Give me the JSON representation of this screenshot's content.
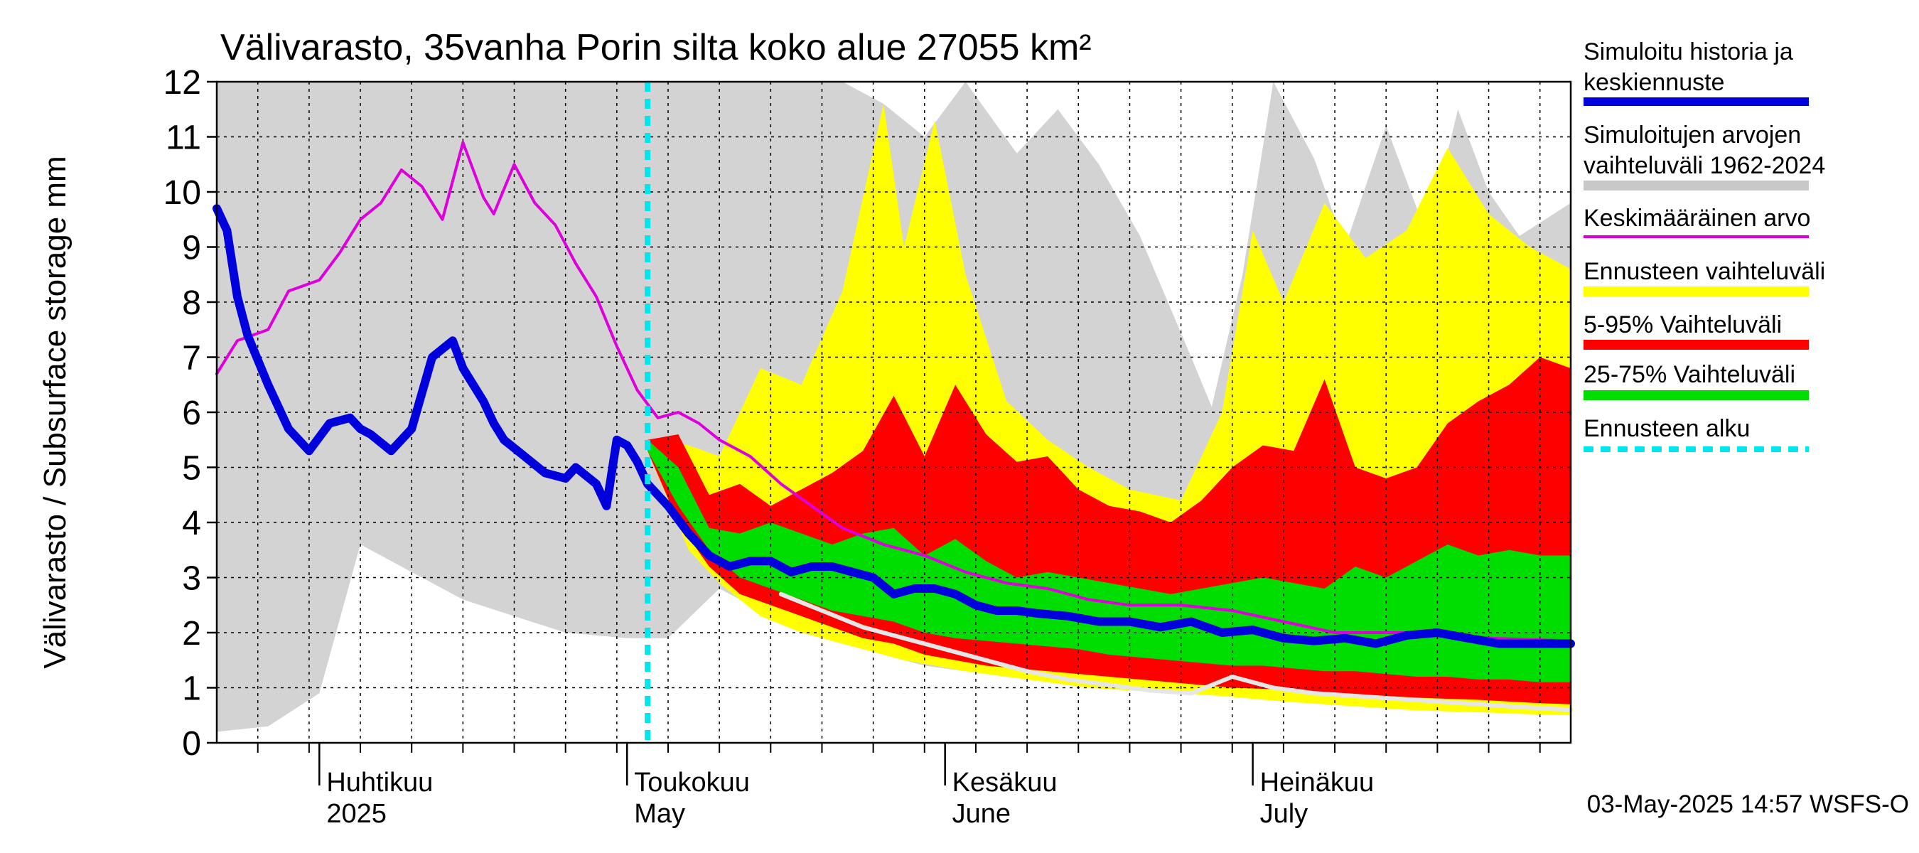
{
  "chart_data": {
    "type": "area",
    "title": "Välivarasto, 35vanha Porin silta koko alue 27055 km²",
    "ylabel": "Välivarasto / Subsurface storage  mm",
    "ylim": [
      0,
      12
    ],
    "y_ticks": [
      "0",
      "1",
      "2",
      "3",
      "4",
      "5",
      "6",
      "7",
      "8",
      "9",
      "10",
      "11",
      "12"
    ],
    "xlim": [
      "2025-03-22",
      "2025-08-01"
    ],
    "month_ticks": [
      {
        "date": "2025-04-01",
        "line1": "Huhtikuu",
        "line2": "2025"
      },
      {
        "date": "2025-05-01",
        "line1": "Toukokuu",
        "line2": "May"
      },
      {
        "date": "2025-06-01",
        "line1": "Kesäkuu",
        "line2": "June"
      },
      {
        "date": "2025-07-01",
        "line1": "Heinäkuu",
        "line2": "July"
      }
    ],
    "forecast_start": "2025-05-03",
    "timestamp": "03-May-2025 14:57 WSFS-O",
    "legend": [
      {
        "label": "Simuloitu historia ja keskiennuste",
        "color": "#0000dd",
        "style": "thick-line"
      },
      {
        "label": "Simuloitujen arvojen vaihteluväli 1962-2024",
        "color": "#c8c8c8",
        "style": "band"
      },
      {
        "label": "Keskimääräinen arvo",
        "color": "#dd00dd",
        "style": "line"
      },
      {
        "label": "Ennusteen vaihteluväli",
        "color": "#ffff00",
        "style": "band"
      },
      {
        "label": "5-95% Vaihteluväli",
        "color": "#ff0000",
        "style": "band"
      },
      {
        "label": "25-75% Vaihteluväli",
        "color": "#00dd00",
        "style": "band"
      },
      {
        "label": "Ennusteen alku",
        "color": "#00e5ee",
        "style": "dashed"
      }
    ],
    "colors": {
      "hist_band": "#d3d3d3",
      "forecast_band": "#ffff00",
      "p5_95": "#ff0000",
      "p25_75": "#00dd00",
      "median": "#0000dd",
      "mean": "#dd00dd",
      "white_line": "#e6e6e6",
      "forecast_start": "#00e5ee"
    },
    "series": {
      "hist_range": {
        "x": [
          "2025-03-22",
          "2025-03-27",
          "2025-04-01",
          "2025-04-05",
          "2025-04-10",
          "2025-04-15",
          "2025-04-20",
          "2025-04-25",
          "2025-05-01",
          "2025-05-05",
          "2025-05-10",
          "2025-05-14",
          "2025-05-18",
          "2025-05-22",
          "2025-05-26",
          "2025-05-30",
          "2025-06-03",
          "2025-06-08",
          "2025-06-12",
          "2025-06-16",
          "2025-06-20",
          "2025-06-25",
          "2025-06-27",
          "2025-06-30",
          "2025-07-03",
          "2025-07-07",
          "2025-07-10",
          "2025-07-14",
          "2025-07-18",
          "2025-07-21",
          "2025-07-24",
          "2025-07-27",
          "2025-08-01"
        ],
        "lo": [
          0.2,
          0.3,
          0.9,
          3.6,
          3.1,
          2.6,
          2.3,
          2.0,
          1.9,
          1.9,
          2.8,
          2.4,
          2.0,
          1.8,
          1.6,
          1.4,
          1.3,
          1.2,
          1.15,
          1.1,
          1.05,
          1.0,
          1.0,
          0.95,
          0.9,
          0.88,
          0.85,
          0.83,
          0.8,
          0.78,
          0.76,
          0.74,
          0.72
        ],
        "hi": [
          12,
          12,
          12,
          12,
          12,
          12,
          12,
          12,
          12,
          12,
          12,
          12,
          12,
          12,
          11.6,
          11.0,
          12,
          10.7,
          11.5,
          10.5,
          9.2,
          7.0,
          6.1,
          8.5,
          12,
          10.6,
          9.0,
          11.2,
          9.2,
          11.5,
          10.0,
          9.2,
          9.8
        ]
      },
      "forecast_range": {
        "x": [
          "2025-05-03",
          "2025-05-07",
          "2025-05-10",
          "2025-05-14",
          "2025-05-18",
          "2025-05-22",
          "2025-05-26",
          "2025-05-28",
          "2025-05-31",
          "2025-06-03",
          "2025-06-07",
          "2025-06-11",
          "2025-06-15",
          "2025-06-19",
          "2025-06-24",
          "2025-06-28",
          "2025-07-01",
          "2025-07-04",
          "2025-07-08",
          "2025-07-12",
          "2025-07-16",
          "2025-07-20",
          "2025-07-24",
          "2025-07-28",
          "2025-08-01"
        ],
        "lo": [
          5.3,
          3.5,
          2.9,
          2.3,
          2.0,
          1.8,
          1.6,
          1.5,
          1.4,
          1.3,
          1.2,
          1.1,
          1.0,
          0.95,
          0.9,
          0.85,
          0.8,
          0.75,
          0.7,
          0.65,
          0.6,
          0.57,
          0.55,
          0.52,
          0.5
        ],
        "hi": [
          5.5,
          5.4,
          5.2,
          6.8,
          6.5,
          8.2,
          11.6,
          9.0,
          11.3,
          8.5,
          6.2,
          5.5,
          5.0,
          4.6,
          4.4,
          6.0,
          9.3,
          8.0,
          9.8,
          8.8,
          9.3,
          10.8,
          9.6,
          9.0,
          8.6
        ]
      },
      "p5_95": {
        "x": [
          "2025-05-03",
          "2025-05-06",
          "2025-05-09",
          "2025-05-12",
          "2025-05-15",
          "2025-05-18",
          "2025-05-21",
          "2025-05-24",
          "2025-05-27",
          "2025-05-30",
          "2025-06-02",
          "2025-06-05",
          "2025-06-08",
          "2025-06-11",
          "2025-06-14",
          "2025-06-17",
          "2025-06-20",
          "2025-06-23",
          "2025-06-26",
          "2025-06-29",
          "2025-07-02",
          "2025-07-05",
          "2025-07-08",
          "2025-07-11",
          "2025-07-14",
          "2025-07-17",
          "2025-07-20",
          "2025-07-23",
          "2025-07-26",
          "2025-07-29",
          "2025-08-01"
        ],
        "lo": [
          5.3,
          4.0,
          3.2,
          2.7,
          2.5,
          2.3,
          2.1,
          1.9,
          1.8,
          1.6,
          1.5,
          1.4,
          1.35,
          1.3,
          1.25,
          1.2,
          1.15,
          1.1,
          1.05,
          1.0,
          0.98,
          0.95,
          0.9,
          0.88,
          0.85,
          0.82,
          0.8,
          0.78,
          0.75,
          0.72,
          0.7
        ],
        "hi": [
          5.5,
          5.6,
          4.5,
          4.7,
          4.3,
          4.6,
          4.9,
          5.3,
          6.3,
          5.2,
          6.5,
          5.6,
          5.1,
          5.2,
          4.6,
          4.3,
          4.2,
          4.0,
          4.4,
          5.0,
          5.4,
          5.3,
          6.6,
          5.0,
          4.8,
          5.0,
          5.8,
          6.2,
          6.5,
          7.0,
          6.8
        ]
      },
      "p25_75": {
        "x": [
          "2025-05-03",
          "2025-05-06",
          "2025-05-09",
          "2025-05-12",
          "2025-05-15",
          "2025-05-18",
          "2025-05-21",
          "2025-05-24",
          "2025-05-27",
          "2025-05-30",
          "2025-06-02",
          "2025-06-05",
          "2025-06-08",
          "2025-06-11",
          "2025-06-14",
          "2025-06-17",
          "2025-06-20",
          "2025-06-23",
          "2025-06-26",
          "2025-06-29",
          "2025-07-02",
          "2025-07-05",
          "2025-07-08",
          "2025-07-11",
          "2025-07-14",
          "2025-07-17",
          "2025-07-20",
          "2025-07-23",
          "2025-07-26",
          "2025-07-29",
          "2025-08-01"
        ],
        "lo": [
          5.3,
          4.3,
          3.5,
          3.0,
          2.8,
          2.6,
          2.4,
          2.3,
          2.2,
          2.0,
          1.9,
          1.85,
          1.8,
          1.75,
          1.7,
          1.6,
          1.55,
          1.5,
          1.45,
          1.4,
          1.4,
          1.35,
          1.3,
          1.3,
          1.25,
          1.2,
          1.2,
          1.15,
          1.15,
          1.1,
          1.1
        ],
        "hi": [
          5.5,
          5.0,
          3.9,
          3.8,
          4.0,
          3.8,
          3.6,
          3.8,
          3.9,
          3.4,
          3.7,
          3.3,
          3.0,
          3.1,
          3.0,
          2.9,
          2.8,
          2.7,
          2.8,
          2.9,
          3.0,
          2.9,
          2.8,
          3.2,
          3.0,
          3.3,
          3.6,
          3.4,
          3.5,
          3.4,
          3.4
        ]
      },
      "median": {
        "x": [
          "2025-03-22",
          "2025-03-23",
          "2025-03-24",
          "2025-03-25",
          "2025-03-27",
          "2025-03-29",
          "2025-03-31",
          "2025-04-02",
          "2025-04-04",
          "2025-04-05",
          "2025-04-06",
          "2025-04-08",
          "2025-04-10",
          "2025-04-12",
          "2025-04-14",
          "2025-04-15",
          "2025-04-17",
          "2025-04-18",
          "2025-04-19",
          "2025-04-21",
          "2025-04-23",
          "2025-04-25",
          "2025-04-26",
          "2025-04-28",
          "2025-04-29",
          "2025-04-30",
          "2025-05-01",
          "2025-05-02",
          "2025-05-03",
          "2025-05-05",
          "2025-05-07",
          "2025-05-09",
          "2025-05-11",
          "2025-05-13",
          "2025-05-15",
          "2025-05-17",
          "2025-05-19",
          "2025-05-21",
          "2025-05-23",
          "2025-05-25",
          "2025-05-27",
          "2025-05-29",
          "2025-05-31",
          "2025-06-02",
          "2025-06-04",
          "2025-06-06",
          "2025-06-08",
          "2025-06-10",
          "2025-06-13",
          "2025-06-16",
          "2025-06-19",
          "2025-06-22",
          "2025-06-25",
          "2025-06-28",
          "2025-07-01",
          "2025-07-04",
          "2025-07-07",
          "2025-07-10",
          "2025-07-13",
          "2025-07-16",
          "2025-07-19",
          "2025-07-22",
          "2025-07-25",
          "2025-07-28",
          "2025-08-01"
        ],
        "y": [
          9.7,
          9.3,
          8.1,
          7.4,
          6.5,
          5.7,
          5.3,
          5.8,
          5.9,
          5.7,
          5.6,
          5.3,
          5.7,
          7.0,
          7.3,
          6.8,
          6.2,
          5.8,
          5.5,
          5.2,
          4.9,
          4.8,
          5.0,
          4.7,
          4.3,
          5.5,
          5.4,
          5.1,
          4.7,
          4.3,
          3.8,
          3.4,
          3.2,
          3.3,
          3.3,
          3.1,
          3.2,
          3.2,
          3.1,
          3.0,
          2.7,
          2.8,
          2.8,
          2.7,
          2.5,
          2.4,
          2.4,
          2.35,
          2.3,
          2.2,
          2.2,
          2.1,
          2.2,
          2.0,
          2.05,
          1.9,
          1.85,
          1.9,
          1.8,
          1.95,
          2.0,
          1.9,
          1.8,
          1.8,
          1.8
        ]
      },
      "mean": {
        "x": [
          "2025-03-22",
          "2025-03-24",
          "2025-03-27",
          "2025-03-29",
          "2025-04-01",
          "2025-04-03",
          "2025-04-05",
          "2025-04-07",
          "2025-04-09",
          "2025-04-11",
          "2025-04-13",
          "2025-04-15",
          "2025-04-17",
          "2025-04-18",
          "2025-04-20",
          "2025-04-22",
          "2025-04-24",
          "2025-04-26",
          "2025-04-28",
          "2025-04-30",
          "2025-05-02",
          "2025-05-04",
          "2025-05-06",
          "2025-05-08",
          "2025-05-10",
          "2025-05-13",
          "2025-05-16",
          "2025-05-19",
          "2025-05-22",
          "2025-05-26",
          "2025-05-30",
          "2025-06-03",
          "2025-06-07",
          "2025-06-11",
          "2025-06-15",
          "2025-06-19",
          "2025-06-24",
          "2025-06-29",
          "2025-07-04",
          "2025-07-09",
          "2025-07-14",
          "2025-07-19",
          "2025-07-24",
          "2025-08-01"
        ],
        "y": [
          6.7,
          7.3,
          7.5,
          8.2,
          8.4,
          8.9,
          9.5,
          9.8,
          10.4,
          10.1,
          9.5,
          10.9,
          9.9,
          9.6,
          10.5,
          9.8,
          9.4,
          8.7,
          8.1,
          7.2,
          6.4,
          5.9,
          6.0,
          5.8,
          5.5,
          5.2,
          4.7,
          4.3,
          3.9,
          3.6,
          3.4,
          3.1,
          2.9,
          2.8,
          2.6,
          2.5,
          2.5,
          2.4,
          2.2,
          2.0,
          2.0,
          2.0,
          1.9,
          1.85
        ]
      },
      "white_line": {
        "x": [
          "2025-05-16",
          "2025-05-20",
          "2025-05-24",
          "2025-05-28",
          "2025-06-01",
          "2025-06-05",
          "2025-06-09",
          "2025-06-13",
          "2025-06-17",
          "2025-06-21",
          "2025-06-25",
          "2025-06-29",
          "2025-07-03",
          "2025-07-07",
          "2025-07-11",
          "2025-07-15",
          "2025-07-19",
          "2025-07-23",
          "2025-07-27",
          "2025-08-01"
        ],
        "y": [
          2.7,
          2.4,
          2.1,
          1.9,
          1.7,
          1.5,
          1.3,
          1.15,
          1.05,
          0.95,
          0.9,
          1.2,
          1.0,
          0.9,
          0.85,
          0.8,
          0.75,
          0.7,
          0.65,
          0.6
        ]
      }
    }
  }
}
